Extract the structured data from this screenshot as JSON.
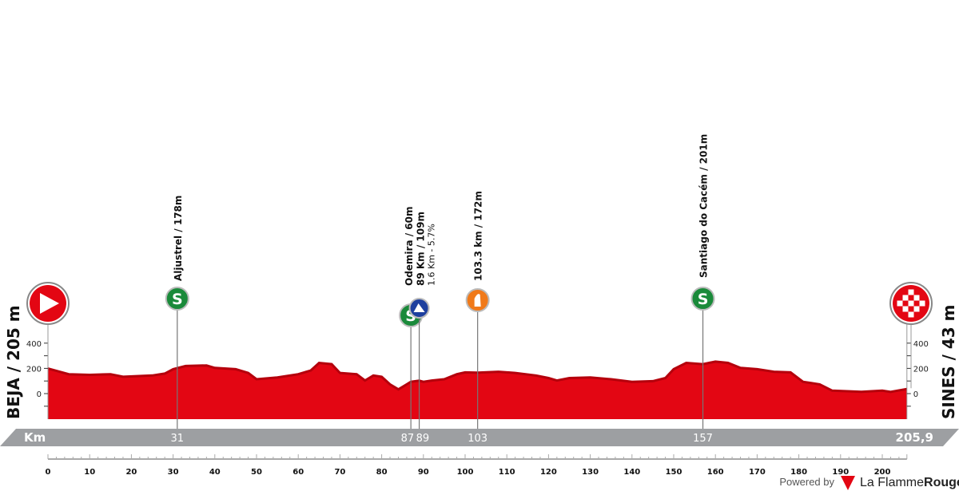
{
  "chart_data": {
    "type": "area",
    "title": "",
    "xlabel": "Km",
    "ylabel": "",
    "xlim": [
      0,
      205.9
    ],
    "ylim": [
      -200,
      500
    ],
    "x_ticks": [
      0,
      10,
      20,
      30,
      40,
      50,
      60,
      70,
      80,
      90,
      100,
      110,
      120,
      130,
      140,
      150,
      160,
      170,
      180,
      190,
      200
    ],
    "y_ticks": [
      400,
      200,
      0
    ],
    "start": {
      "label": "BEJA / 205 m",
      "icon": "start-arrow-icon"
    },
    "finish": {
      "label": "SINES / 43 m",
      "icon": "checkered-flag-icon",
      "distance_label": "205,9"
    },
    "profile": {
      "x": [
        0,
        5,
        10,
        15,
        18,
        25,
        28,
        30,
        33,
        38,
        40,
        45,
        48,
        50,
        55,
        60,
        63,
        65,
        68,
        70,
        74,
        76,
        78,
        80,
        82,
        84,
        86,
        87,
        89,
        90,
        92,
        95,
        98,
        100,
        103,
        108,
        112,
        117,
        120,
        122,
        125,
        130,
        135,
        140,
        145,
        148,
        150,
        153,
        157,
        160,
        163,
        166,
        170,
        174,
        178,
        181,
        185,
        188,
        195,
        200,
        202,
        205.9
      ],
      "y": [
        205,
        160,
        155,
        160,
        140,
        150,
        165,
        200,
        225,
        230,
        210,
        200,
        170,
        120,
        135,
        160,
        190,
        250,
        240,
        170,
        160,
        110,
        150,
        140,
        80,
        40,
        80,
        100,
        109,
        100,
        110,
        120,
        160,
        175,
        172,
        180,
        170,
        150,
        130,
        110,
        130,
        135,
        120,
        100,
        105,
        130,
        200,
        250,
        240,
        260,
        250,
        210,
        200,
        180,
        175,
        100,
        80,
        30,
        20,
        30,
        20,
        43
      ]
    },
    "points": [
      {
        "km_label": "31",
        "km": 31,
        "icon": "sprint-icon",
        "lines": [
          "Aljustrel / 178m"
        ]
      },
      {
        "km_label": "87",
        "km": 87,
        "icon": "sprint-icon",
        "lines": [
          "Odemira / 60m"
        ]
      },
      {
        "km_label": "89",
        "km": 89,
        "icon": "climb-icon",
        "lines": [
          "89 Km / 109m",
          "1.6 Km - 5.7%"
        ]
      },
      {
        "km_label": "103",
        "km": 103,
        "icon": "feed-zone-icon",
        "lines": [
          "103.3 km / 172m"
        ]
      },
      {
        "km_label": "157",
        "km": 157,
        "icon": "sprint-icon",
        "lines": [
          "Santiago do Cacém / 201m"
        ]
      }
    ],
    "colors": {
      "profile": "#e30613",
      "profile_dark": "#b5000c",
      "sprint": "#1a8a3a",
      "climb": "#1d3f9e",
      "feed": "#f07a1a",
      "band": "#9d9fa2"
    }
  },
  "footer": {
    "powered_by": "Powered by",
    "brand_a": "La Flamme",
    "brand_b": "Rouge"
  }
}
